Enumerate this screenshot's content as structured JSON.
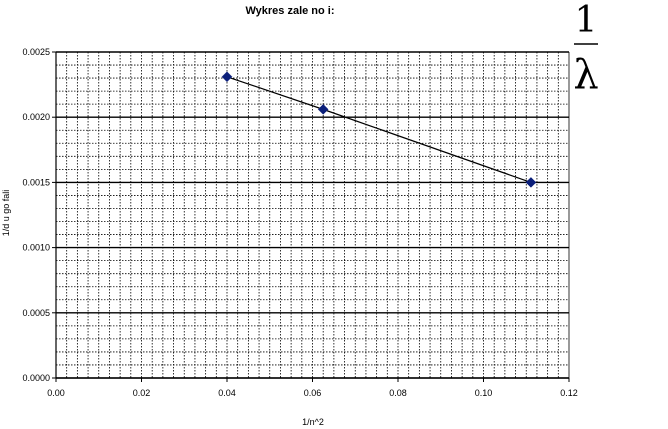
{
  "chart_data": {
    "type": "line",
    "title": "Wykres zale  no   i:",
    "xlabel": "1/n^2",
    "ylabel": "1/d  u go    fali",
    "xlim": [
      0,
      0.12
    ],
    "ylim": [
      0,
      0.0025
    ],
    "x_ticks": [
      "0.00",
      "0.02",
      "0.04",
      "0.06",
      "0.08",
      "0.10",
      "0.12"
    ],
    "y_ticks": [
      "0.0000",
      "0.0005",
      "0.0010",
      "0.0015",
      "0.0020",
      "0.0025"
    ],
    "grid": true,
    "series": [
      {
        "x": [
          0.04,
          0.0625,
          0.1111
        ],
        "y": [
          0.00231,
          0.00206,
          0.0015
        ],
        "color": "#0b1f7a",
        "marker": "diamond"
      }
    ],
    "annotation": {
      "numerator": "1",
      "denominator": "λ"
    }
  }
}
